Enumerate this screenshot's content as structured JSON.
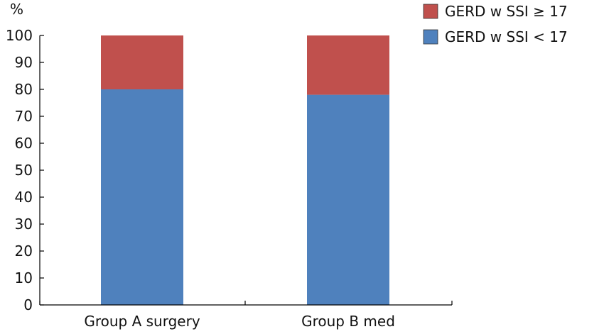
{
  "chart_data": {
    "type": "bar",
    "stacked": true,
    "categories": [
      "Group A surgery",
      "Group B med"
    ],
    "series": [
      {
        "name": "GERD w SSI < 17",
        "values": [
          80,
          78
        ],
        "color": "#4f81bd"
      },
      {
        "name": "GERD w SSI ≥ 17",
        "values": [
          20,
          22
        ],
        "color": "#c0504d"
      }
    ],
    "ylabel": "%",
    "xlabel": "",
    "ylim": [
      0,
      100
    ],
    "yticks": [
      0,
      10,
      20,
      30,
      40,
      50,
      60,
      70,
      80,
      90,
      100
    ],
    "grid": false,
    "legend": {
      "placement": "top-right",
      "entries": [
        "GERD w SSI ≥ 17",
        "GERD w SSI < 17"
      ]
    }
  }
}
